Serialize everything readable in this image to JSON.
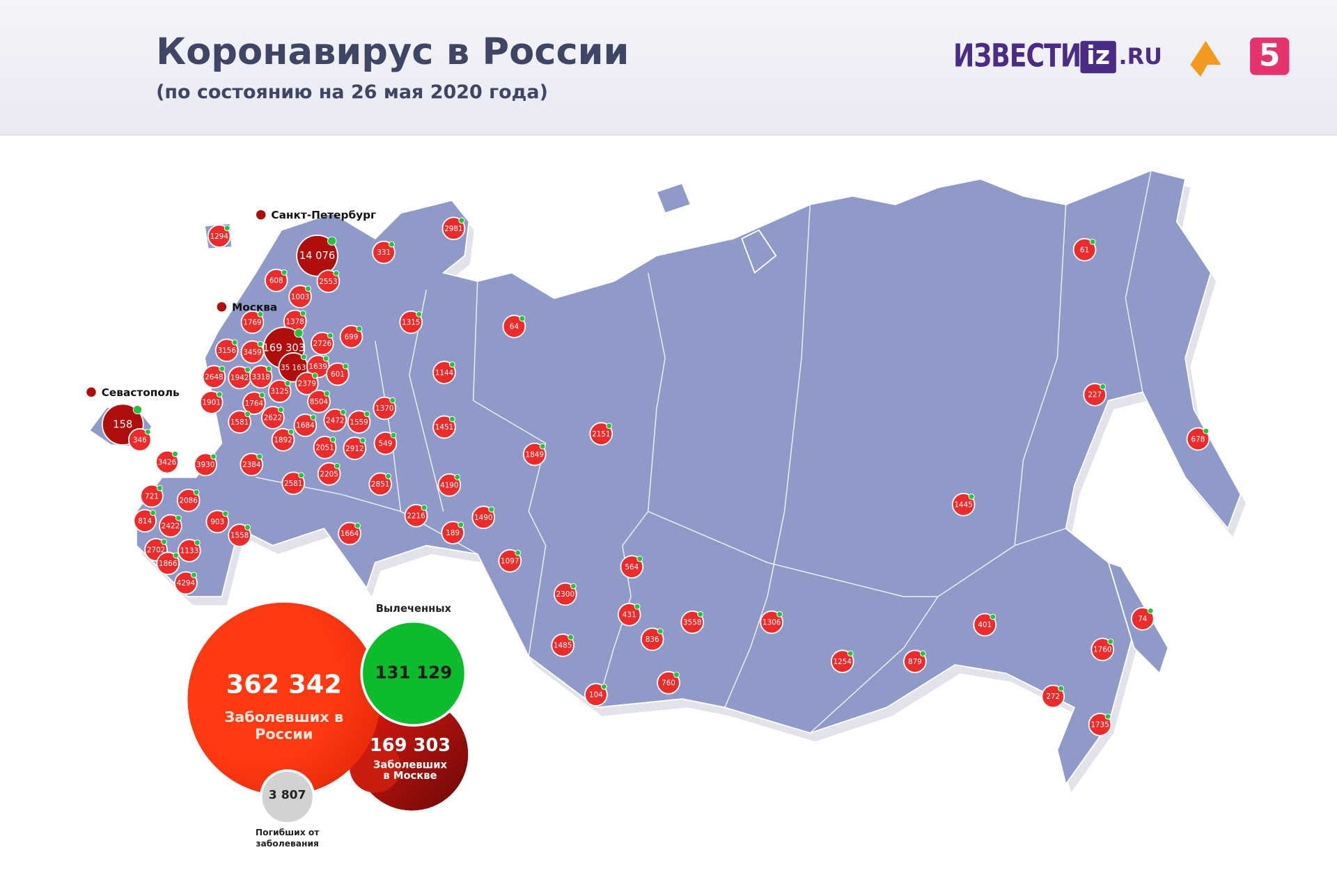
{
  "header": {
    "title": "Коронавирус в России",
    "subtitle": "(по состоянию на 26 мая 2020 года)",
    "logo_izvestia": "ИЗВЕСТИЯ",
    "logo_iz": "iz",
    ".RU": null,
    "logo_ru": ".RU",
    "logo_5": "5"
  },
  "cities": [
    "Санкт-Петербург",
    "Москва",
    "Севастополь"
  ],
  "regions": [
    "1294",
    "14 076",
    "331",
    "2981",
    "608",
    "2553",
    "1003",
    "1769",
    "1378",
    "169 303",
    "699",
    "1315",
    "64",
    "3156",
    "3459",
    "2726",
    "1144",
    "2648",
    "1942",
    "3318",
    "35 163",
    "1639",
    "601",
    "3125",
    "2379",
    "1901",
    "1764",
    "8504",
    "1370",
    "158",
    "346",
    "1581",
    "2622",
    "1684",
    "2472",
    "1559",
    "1451",
    "2151",
    "1849",
    "1892",
    "2051",
    "2912",
    "549",
    "3426",
    "3930",
    "2384",
    "2205",
    "2851",
    "4190",
    "2581",
    "721",
    "2086",
    "903",
    "1558",
    "2216",
    "1490",
    "189",
    "1664",
    "814",
    "2422",
    "2702",
    "1133",
    "1866",
    "4294",
    "1097",
    "564",
    "2300",
    "431",
    "3558",
    "1306",
    "836",
    "1485",
    "1254",
    "879",
    "401",
    "104",
    "760",
    "272",
    "1760",
    "1735",
    "74",
    "678",
    "227",
    "1445",
    "61"
  ],
  "summary": {
    "total": {
      "value": "362 342",
      "label": "Заболевших в России"
    },
    "moscow": {
      "value": "169 303",
      "label": "Заболевших в Москве"
    },
    "recovered": {
      "value": "131 129",
      "label": "Вылеченных"
    },
    "deaths": {
      "value": "3 807",
      "label": "Погибших от заболевания"
    }
  }
}
